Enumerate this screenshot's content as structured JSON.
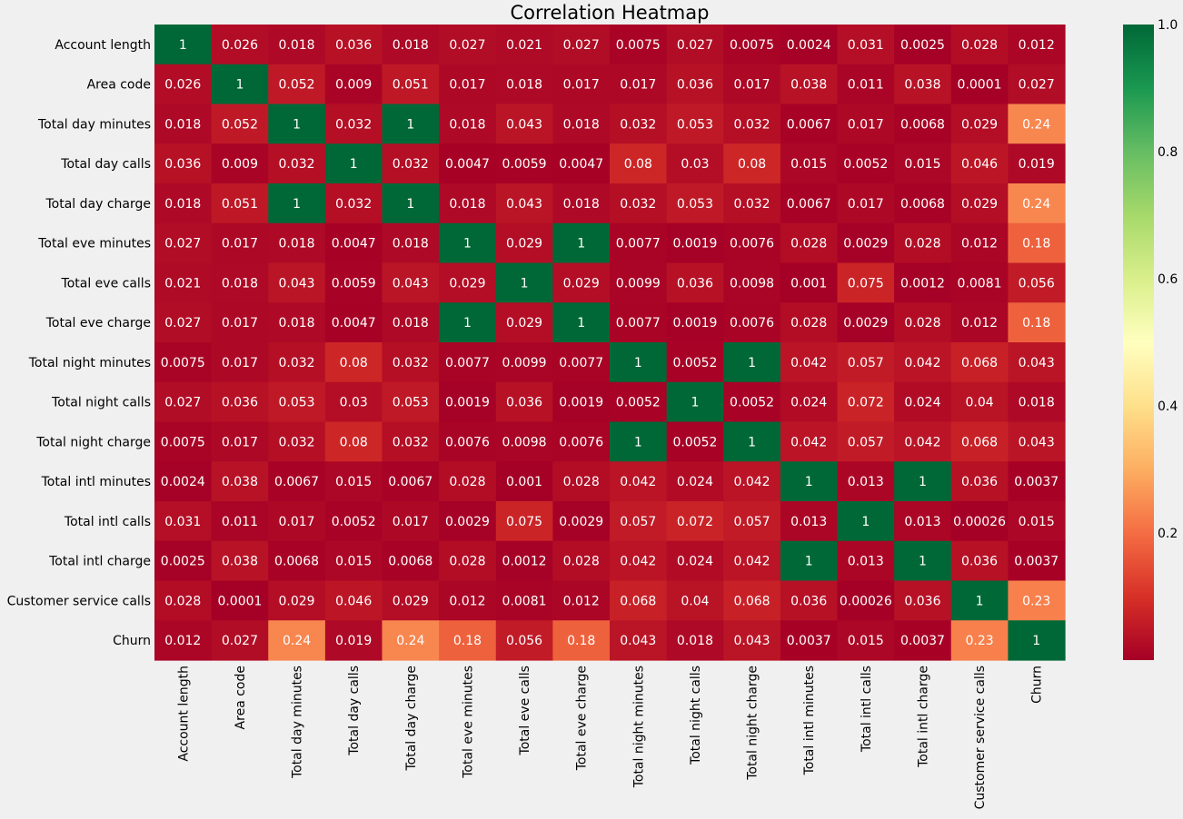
{
  "chart_data": {
    "type": "heatmap",
    "title": "Correlation Heatmap",
    "xlabel": "",
    "ylabel": "",
    "labels": [
      "Account length",
      "Area code",
      "Total day minutes",
      "Total day calls",
      "Total day charge",
      "Total eve minutes",
      "Total eve calls",
      "Total eve charge",
      "Total night minutes",
      "Total night calls",
      "Total night charge",
      "Total intl minutes",
      "Total intl calls",
      "Total intl charge",
      "Customer service calls",
      "Churn"
    ],
    "values": [
      [
        "1",
        "0.026",
        "0.018",
        "0.036",
        "0.018",
        "0.027",
        "0.021",
        "0.027",
        "0.0075",
        "0.027",
        "0.0075",
        "0.0024",
        "0.031",
        "0.0025",
        "0.028",
        "0.012"
      ],
      [
        "0.026",
        "1",
        "0.052",
        "0.009",
        "0.051",
        "0.017",
        "0.018",
        "0.017",
        "0.017",
        "0.036",
        "0.017",
        "0.038",
        "0.011",
        "0.038",
        "0.0001",
        "0.027"
      ],
      [
        "0.018",
        "0.052",
        "1",
        "0.032",
        "1",
        "0.018",
        "0.043",
        "0.018",
        "0.032",
        "0.053",
        "0.032",
        "0.0067",
        "0.017",
        "0.0068",
        "0.029",
        "0.24"
      ],
      [
        "0.036",
        "0.009",
        "0.032",
        "1",
        "0.032",
        "0.0047",
        "0.0059",
        "0.0047",
        "0.08",
        "0.03",
        "0.08",
        "0.015",
        "0.0052",
        "0.015",
        "0.046",
        "0.019"
      ],
      [
        "0.018",
        "0.051",
        "1",
        "0.032",
        "1",
        "0.018",
        "0.043",
        "0.018",
        "0.032",
        "0.053",
        "0.032",
        "0.0067",
        "0.017",
        "0.0068",
        "0.029",
        "0.24"
      ],
      [
        "0.027",
        "0.017",
        "0.018",
        "0.0047",
        "0.018",
        "1",
        "0.029",
        "1",
        "0.0077",
        "0.0019",
        "0.0076",
        "0.028",
        "0.0029",
        "0.028",
        "0.012",
        "0.18"
      ],
      [
        "0.021",
        "0.018",
        "0.043",
        "0.0059",
        "0.043",
        "0.029",
        "1",
        "0.029",
        "0.0099",
        "0.036",
        "0.0098",
        "0.001",
        "0.075",
        "0.0012",
        "0.0081",
        "0.056"
      ],
      [
        "0.027",
        "0.017",
        "0.018",
        "0.0047",
        "0.018",
        "1",
        "0.029",
        "1",
        "0.0077",
        "0.0019",
        "0.0076",
        "0.028",
        "0.0029",
        "0.028",
        "0.012",
        "0.18"
      ],
      [
        "0.0075",
        "0.017",
        "0.032",
        "0.08",
        "0.032",
        "0.0077",
        "0.0099",
        "0.0077",
        "1",
        "0.0052",
        "1",
        "0.042",
        "0.057",
        "0.042",
        "0.068",
        "0.043"
      ],
      [
        "0.027",
        "0.036",
        "0.053",
        "0.03",
        "0.053",
        "0.0019",
        "0.036",
        "0.0019",
        "0.0052",
        "1",
        "0.0052",
        "0.024",
        "0.072",
        "0.024",
        "0.04",
        "0.018"
      ],
      [
        "0.0075",
        "0.017",
        "0.032",
        "0.08",
        "0.032",
        "0.0076",
        "0.0098",
        "0.0076",
        "1",
        "0.0052",
        "1",
        "0.042",
        "0.057",
        "0.042",
        "0.068",
        "0.043"
      ],
      [
        "0.0024",
        "0.038",
        "0.0067",
        "0.015",
        "0.0067",
        "0.028",
        "0.001",
        "0.028",
        "0.042",
        "0.024",
        "0.042",
        "1",
        "0.013",
        "1",
        "0.036",
        "0.0037"
      ],
      [
        "0.031",
        "0.011",
        "0.017",
        "0.0052",
        "0.017",
        "0.0029",
        "0.075",
        "0.0029",
        "0.057",
        "0.072",
        "0.057",
        "0.013",
        "1",
        "0.013",
        "0.00026",
        "0.015"
      ],
      [
        "0.0025",
        "0.038",
        "0.0068",
        "0.015",
        "0.0068",
        "0.028",
        "0.0012",
        "0.028",
        "0.042",
        "0.024",
        "0.042",
        "1",
        "0.013",
        "1",
        "0.036",
        "0.0037"
      ],
      [
        "0.028",
        "0.0001",
        "0.029",
        "0.046",
        "0.029",
        "0.012",
        "0.0081",
        "0.012",
        "0.068",
        "0.04",
        "0.068",
        "0.036",
        "0.00026",
        "0.036",
        "1",
        "0.23"
      ],
      [
        "0.012",
        "0.027",
        "0.24",
        "0.019",
        "0.24",
        "0.18",
        "0.056",
        "0.18",
        "0.043",
        "0.018",
        "0.043",
        "0.0037",
        "0.015",
        "0.0037",
        "0.23",
        "1"
      ]
    ],
    "colormap": "RdYlGn",
    "colorbar": {
      "range": [
        0,
        1
      ],
      "ticks": [
        "0.2",
        "0.4",
        "0.6",
        "0.8",
        "1.0"
      ]
    },
    "grid": false,
    "legend": "none"
  }
}
